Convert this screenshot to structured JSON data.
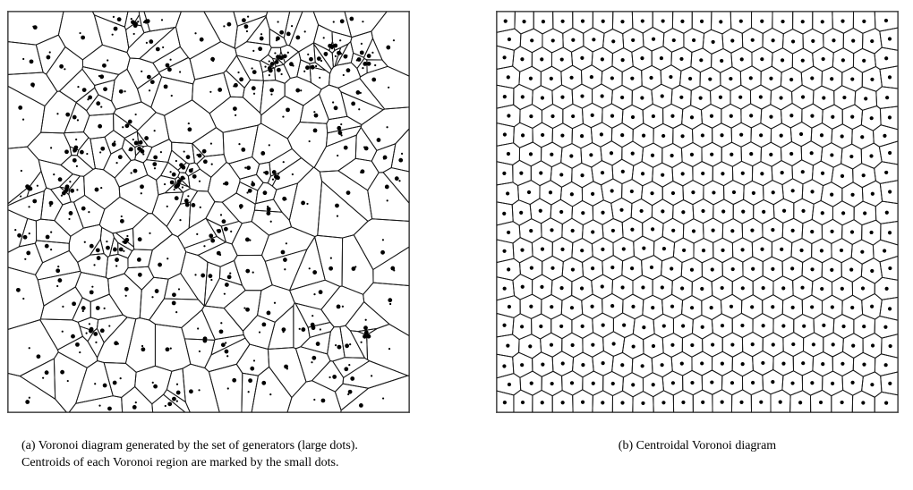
{
  "figure": {
    "panels": [
      {
        "id": "a",
        "kind": "voronoi-random-generators-with-centroids"
      },
      {
        "id": "b",
        "kind": "centroidal-voronoi-tessellation"
      }
    ],
    "captions": {
      "a": "(a) Voronoi diagram generated by the set of generators (large dots). Centroids of each Voronoi region are marked by the small dots.",
      "b": "(b) Centroidal Voronoi diagram"
    },
    "colors": {
      "edge": "#1a1a1a",
      "dot": "#000000",
      "frame": "#555555"
    }
  }
}
